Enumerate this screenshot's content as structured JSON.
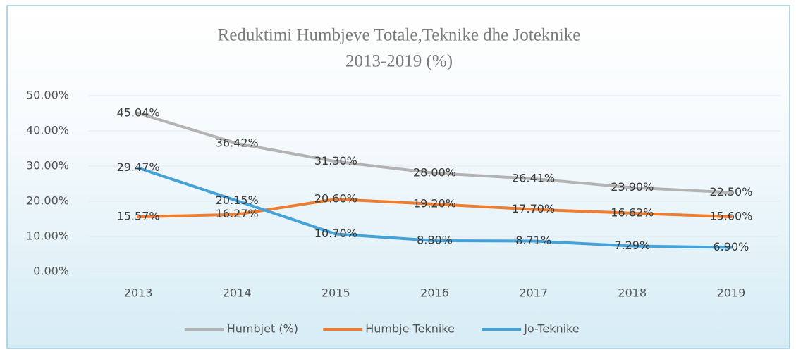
{
  "chart_data": {
    "type": "line",
    "title": "Reduktimi Humbjeve Totale,Teknike dhe Joteknike",
    "subtitle": "2013-2019 (%)",
    "categories": [
      "2013",
      "2014",
      "2015",
      "2016",
      "2017",
      "2018",
      "2019"
    ],
    "series": [
      {
        "name": "Humbjet (%)",
        "color": "#b3b3b3",
        "values": [
          45.04,
          36.42,
          31.3,
          28.0,
          26.41,
          23.9,
          22.5
        ],
        "value_labels": [
          "45.04%",
          "36.42%",
          "31.30%",
          "28.00%",
          "26.41%",
          "23.90%",
          "22.50%"
        ]
      },
      {
        "name": "Humbje Teknike",
        "color": "#ed7d31",
        "values": [
          15.57,
          16.27,
          20.6,
          19.2,
          17.7,
          16.62,
          15.6
        ],
        "value_labels": [
          "15.57%",
          "16.27%",
          "20.60%",
          "19.20%",
          "17.70%",
          "16.62%",
          "15.60%"
        ]
      },
      {
        "name": "Jo-Teknike",
        "color": "#45a2d9",
        "values": [
          29.47,
          20.15,
          10.7,
          8.8,
          8.71,
          7.29,
          6.9
        ],
        "value_labels": [
          "29.47%",
          "20.15%",
          "10.70%",
          "8.80%",
          "8.71%",
          "7.29%",
          "6.90%"
        ]
      }
    ],
    "ylim": [
      0,
      50
    ],
    "yticks": [
      {
        "value": 0,
        "label": "0.00%"
      },
      {
        "value": 10,
        "label": "10.00%"
      },
      {
        "value": 20,
        "label": "20.00%"
      },
      {
        "value": 30,
        "label": "30.00%"
      },
      {
        "value": 40,
        "label": "40.00%"
      },
      {
        "value": 50,
        "label": "50.00%"
      }
    ],
    "grid": true,
    "legend": "bottom"
  }
}
